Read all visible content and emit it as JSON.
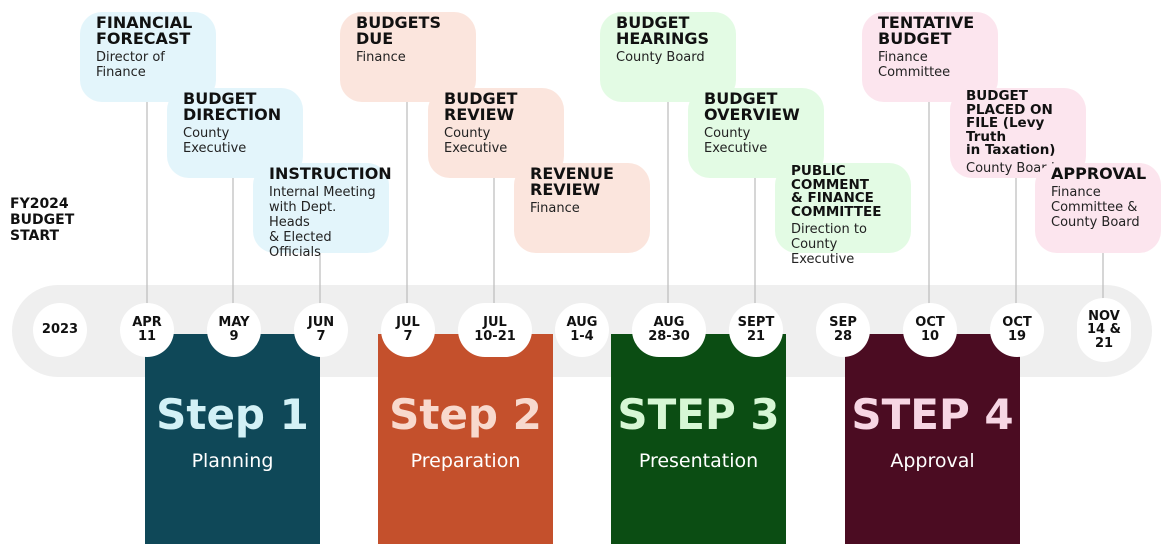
{
  "start_label": [
    "FY2024",
    "BUDGET",
    "START"
  ],
  "dates": [
    [
      "2023"
    ],
    [
      "APR",
      "11"
    ],
    [
      "MAY",
      "9"
    ],
    [
      "JUN",
      "7"
    ],
    [
      "JUL",
      "7"
    ],
    [
      "JUL",
      "10-21"
    ],
    [
      "AUG",
      "1-4"
    ],
    [
      "AUG",
      "28-30"
    ],
    [
      "SEPT",
      "21"
    ],
    [
      "SEP",
      "28"
    ],
    [
      "OCT",
      "10"
    ],
    [
      "OCT",
      "19"
    ],
    [
      "NOV",
      "14 &",
      "21"
    ]
  ],
  "events": [
    {
      "title": [
        "FINANCIAL",
        "FORECAST"
      ],
      "detail": [
        "Director of",
        "Finance"
      ]
    },
    {
      "title": [
        "BUDGET",
        "DIRECTION"
      ],
      "detail": [
        "County",
        "Executive"
      ]
    },
    {
      "title": [
        "INSTRUCTION"
      ],
      "detail": [
        "Internal Meeting",
        "with Dept. Heads",
        "& Elected Officials"
      ]
    },
    {
      "title": [
        "BUDGETS DUE"
      ],
      "detail": [
        "Finance"
      ]
    },
    {
      "title": [
        "BUDGET",
        "REVIEW"
      ],
      "detail": [
        "County",
        "Executive"
      ]
    },
    {
      "title": [
        "REVENUE",
        "REVIEW"
      ],
      "detail": [
        "Finance"
      ]
    },
    {
      "title": [
        "BUDGET",
        "HEARINGS"
      ],
      "detail": [
        "County Board"
      ]
    },
    {
      "title": [
        "BUDGET",
        "OVERVIEW"
      ],
      "detail": [
        "County",
        "Executive"
      ]
    },
    {
      "title": [
        "PUBLIC COMMENT",
        "& FINANCE",
        "COMMITTEE"
      ],
      "detail": [
        "Direction to",
        "County Executive"
      ]
    },
    {
      "title": [
        "TENTATIVE",
        "BUDGET"
      ],
      "detail": [
        "Finance",
        "Committee"
      ]
    },
    {
      "title": [
        "BUDGET",
        "PLACED ON",
        "FILE (Levy Truth",
        "in Taxation)"
      ],
      "detail": [
        "County Board"
      ]
    },
    {
      "title": [
        "APPROVAL"
      ],
      "detail": [
        "Finance",
        "Committee &",
        "County Board"
      ]
    }
  ],
  "steps": [
    {
      "heading": "Step 1",
      "name": "Planning"
    },
    {
      "heading": "Step 2",
      "name": "Preparation"
    },
    {
      "heading": "STEP 3",
      "name": "Presentation"
    },
    {
      "heading": "STEP 4",
      "name": "Approval"
    }
  ]
}
